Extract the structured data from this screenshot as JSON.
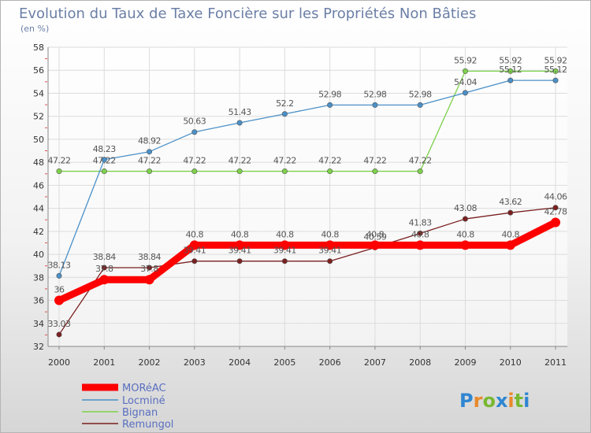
{
  "chart_data": {
    "type": "line",
    "title": "Evolution du Taux de Taxe Foncière sur les Propriétés Non Bâties",
    "subtitle": "(en %)",
    "xlabel": "",
    "ylabel": "",
    "x": [
      "2000",
      "2001",
      "2002",
      "2003",
      "2004",
      "2005",
      "2006",
      "2007",
      "2008",
      "2009",
      "2010",
      "2011"
    ],
    "ylim": [
      32,
      58
    ],
    "yticks": [
      32,
      34,
      36,
      38,
      40,
      42,
      44,
      46,
      48,
      50,
      52,
      54,
      56,
      58
    ],
    "grid": true,
    "legend_position": "bottom-left",
    "series": [
      {
        "name": "MORéAC",
        "color": "#ff0000",
        "values": [
          36,
          37.8,
          37.8,
          40.8,
          40.8,
          40.8,
          40.8,
          40.8,
          40.8,
          40.8,
          40.8,
          42.78
        ],
        "labels": [
          "36",
          "37.8",
          "37.8",
          "40.8",
          "40.8",
          "40.8",
          "40.8",
          "40.8",
          "40.8",
          "40.8",
          "40.8",
          "42.78"
        ]
      },
      {
        "name": "Locminé",
        "color": "#4a90c8",
        "values": [
          38.13,
          48.23,
          48.92,
          50.63,
          51.43,
          52.2,
          52.98,
          52.98,
          52.98,
          54.04,
          55.12,
          55.12
        ],
        "labels": [
          "38.13",
          "48.23",
          "48.92",
          "50.63",
          "51.43",
          "52.2",
          "52.98",
          "52.98",
          "52.98",
          "54.04",
          "55.12",
          "55.12"
        ]
      },
      {
        "name": "Bignan",
        "color": "#7ed14b",
        "values": [
          47.22,
          47.22,
          47.22,
          47.22,
          47.22,
          47.22,
          47.22,
          47.22,
          47.22,
          55.92,
          55.92,
          55.92
        ],
        "labels": [
          "47.22",
          "47.22",
          "47.22",
          "47.22",
          "47.22",
          "47.22",
          "47.22",
          "47.22",
          "47.22",
          "55.92",
          "55.92",
          "55.92"
        ]
      },
      {
        "name": "Remungol",
        "color": "#7a1f1f",
        "values": [
          33.03,
          38.84,
          38.84,
          39.41,
          39.41,
          39.41,
          39.41,
          40.59,
          41.83,
          43.08,
          43.62,
          44.06
        ],
        "labels": [
          "33.03",
          "38.84",
          "38.84",
          "39.41",
          "39.41",
          "39.41",
          "39.41",
          "40.59",
          "41.83",
          "43.08",
          "43.62",
          "44.06"
        ]
      }
    ]
  },
  "logo": {
    "letters": [
      "P",
      "r",
      "o",
      "x",
      "i",
      "t",
      "i"
    ],
    "colors": [
      "#2f86d1",
      "#e8892a",
      "#79b832",
      "#2f86d1",
      "#e8892a",
      "#79b832",
      "#2f86d1"
    ]
  }
}
